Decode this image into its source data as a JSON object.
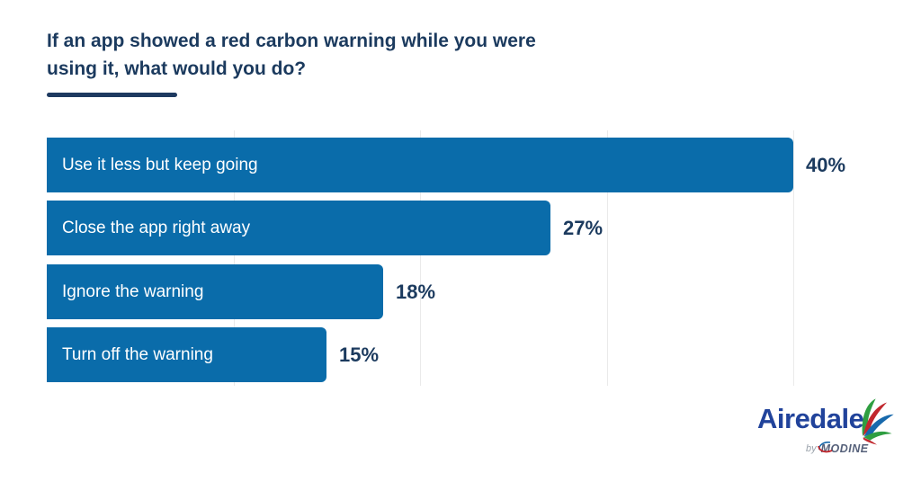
{
  "header": {
    "title_lines": [
      "If an app showed a red carbon warning while you were",
      "using it, what would you do?"
    ]
  },
  "chart_data": {
    "type": "bar",
    "orientation": "horizontal",
    "title": "If an app showed a red carbon warning while you were using it, what would you do?",
    "categories": [
      "Use it less but keep going",
      "Close the app right away",
      "Ignore the warning",
      "Turn off the warning"
    ],
    "values": [
      40,
      27,
      18,
      15
    ],
    "value_labels": [
      "40%",
      "27%",
      "18%",
      "15%"
    ],
    "xlim": [
      0,
      46
    ],
    "gridlines_percent": [
      10,
      20,
      30,
      40
    ],
    "grid": true,
    "legend": false,
    "bar_color": "#0a6caa",
    "bar_label_color": "#ffffff",
    "value_label_color": "#1b3a5e",
    "gridline_color": "#eaeaea"
  },
  "logo": {
    "brand": "Airedale",
    "byline": "by",
    "sub_brand": "MODINE",
    "brand_color": "#21439b",
    "swoosh_green": "#2f9e41",
    "swoosh_red": "#c1272d",
    "swoosh_blue": "#1769ac"
  }
}
